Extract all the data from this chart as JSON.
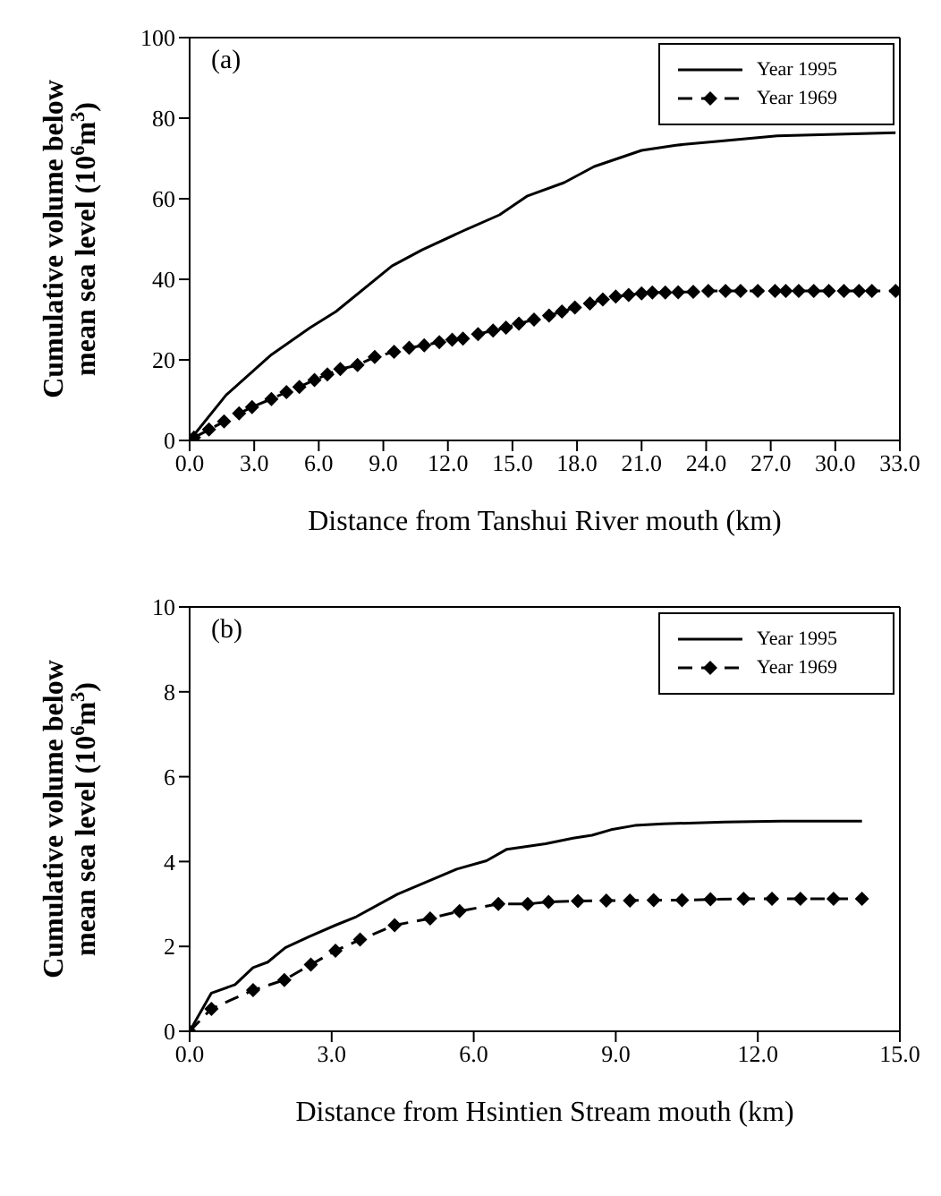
{
  "chart_data": [
    {
      "type": "line",
      "ylabel": "Cumulative volume below mean sea level (10$^{6}$m$^{3}$)",
      "xlabel": "Distance from Tanshui River mouth (km)",
      "annotations": [
        "(a)"
      ],
      "xlim": [
        0,
        33
      ],
      "ylim": [
        0,
        100
      ],
      "xticks": [
        {
          "value": 0,
          "label": "0.0"
        },
        {
          "value": 3,
          "label": "3.0"
        },
        {
          "value": 6,
          "label": "6.0"
        },
        {
          "value": 9,
          "label": "9.0"
        },
        {
          "value": 12,
          "label": "12.0"
        },
        {
          "value": 15,
          "label": "15.0"
        },
        {
          "value": 18,
          "label": "18.0"
        },
        {
          "value": 21,
          "label": "21.0"
        },
        {
          "value": 24,
          "label": "24.0"
        },
        {
          "value": 27,
          "label": "27.0"
        },
        {
          "value": 30,
          "label": "30.0"
        },
        {
          "value": 33,
          "label": "33.0"
        }
      ],
      "yticks": [
        0,
        20,
        40,
        60,
        80,
        100
      ],
      "grid": false,
      "legend": "top right",
      "series": [
        {
          "name": "Year 1995",
          "color": "#000000",
          "marker": "none",
          "line_style": "solid",
          "x": [
            0,
            1.7,
            3.8,
            5.6,
            6.8,
            9.4,
            10.8,
            12.7,
            14.4,
            15.7,
            17.4,
            18.8,
            19.9,
            21,
            22.6,
            24.6,
            27.3,
            32.8
          ],
          "values": [
            0,
            11.3,
            21.3,
            28,
            32,
            43.3,
            47.3,
            52,
            56,
            60.7,
            64,
            68,
            70,
            72,
            73.3,
            74.3,
            75.6,
            76.4
          ]
        },
        {
          "name": "Year 1969",
          "color": "#000000",
          "marker": "diamond",
          "line_style": "dashed",
          "x": [
            0.2,
            0.9,
            1.6,
            2.3,
            2.9,
            3.8,
            4.5,
            5.1,
            5.8,
            6.4,
            7.0,
            7.8,
            8.6,
            9.5,
            10.2,
            10.9,
            11.6,
            12.2,
            12.7,
            13.4,
            14.1,
            14.7,
            15.3,
            16.0,
            16.7,
            17.3,
            17.9,
            18.6,
            19.2,
            19.8,
            20.4,
            21.0,
            21.5,
            22.1,
            22.7,
            23.4,
            24.1,
            24.9,
            25.6,
            26.4,
            27.2,
            27.7,
            28.3,
            29.0,
            29.7,
            30.4,
            31.1,
            31.7,
            32.8
          ],
          "values": [
            0.7,
            2.7,
            4.7,
            6.7,
            8.3,
            10.3,
            12,
            13.3,
            15,
            16.4,
            17.7,
            18.7,
            20.7,
            22,
            23,
            23.6,
            24.4,
            25,
            25.3,
            26.4,
            27.3,
            28,
            29,
            30,
            31,
            32,
            33,
            34,
            35,
            35.7,
            36.1,
            36.5,
            36.7,
            36.7,
            36.8,
            36.9,
            37.1,
            37.1,
            37.1,
            37.1,
            37.1,
            37.1,
            37.1,
            37.1,
            37.1,
            37.1,
            37.1,
            37.1,
            37.1
          ]
        }
      ]
    },
    {
      "type": "line",
      "ylabel": "Cumulative volume below mean sea level (10$^{6}$m$^{3}$)",
      "xlabel": "Distance from Hsintien Stream mouth (km)",
      "annotations": [
        "(b)"
      ],
      "xlim": [
        0,
        15
      ],
      "ylim": [
        0,
        10
      ],
      "xticks": [
        {
          "value": 0,
          "label": "0.0"
        },
        {
          "value": 3,
          "label": "3.0"
        },
        {
          "value": 6,
          "label": "6.0"
        },
        {
          "value": 9,
          "label": "9.0"
        },
        {
          "value": 12,
          "label": "12.0"
        },
        {
          "value": 15,
          "label": "15.0"
        }
      ],
      "yticks": [
        0,
        2,
        4,
        6,
        8,
        10
      ],
      "grid": false,
      "legend": "top right",
      "series": [
        {
          "name": "Year 1995",
          "color": "#000000",
          "marker": "none",
          "line_style": "solid",
          "x": [
            0,
            0.46,
            0.96,
            1.34,
            1.65,
            2.02,
            2.52,
            3.08,
            3.52,
            4.39,
            5.64,
            6.27,
            6.7,
            7.52,
            8.1,
            8.5,
            8.9,
            9.4,
            10.0,
            11.3,
            12.5,
            14.2
          ],
          "values": [
            0,
            0.9,
            1.1,
            1.5,
            1.63,
            1.97,
            2.23,
            2.5,
            2.7,
            3.23,
            3.82,
            4.02,
            4.29,
            4.42,
            4.55,
            4.62,
            4.75,
            4.85,
            4.89,
            4.93,
            4.95,
            4.95
          ]
        },
        {
          "name": "Year 1969",
          "color": "#000000",
          "marker": "diamond",
          "line_style": "dashed",
          "x": [
            0,
            0.46,
            1.34,
            2.0,
            2.56,
            3.08,
            3.6,
            4.33,
            5.08,
            5.7,
            6.52,
            7.14,
            7.58,
            8.2,
            8.8,
            9.3,
            9.8,
            10.4,
            11.0,
            11.7,
            12.3,
            12.9,
            13.6,
            14.2
          ],
          "values": [
            0,
            0.53,
            0.97,
            1.21,
            1.57,
            1.9,
            2.16,
            2.5,
            2.66,
            2.83,
            3.0,
            3.0,
            3.05,
            3.07,
            3.08,
            3.08,
            3.09,
            3.09,
            3.11,
            3.12,
            3.12,
            3.12,
            3.12,
            3.12
          ]
        }
      ]
    }
  ]
}
